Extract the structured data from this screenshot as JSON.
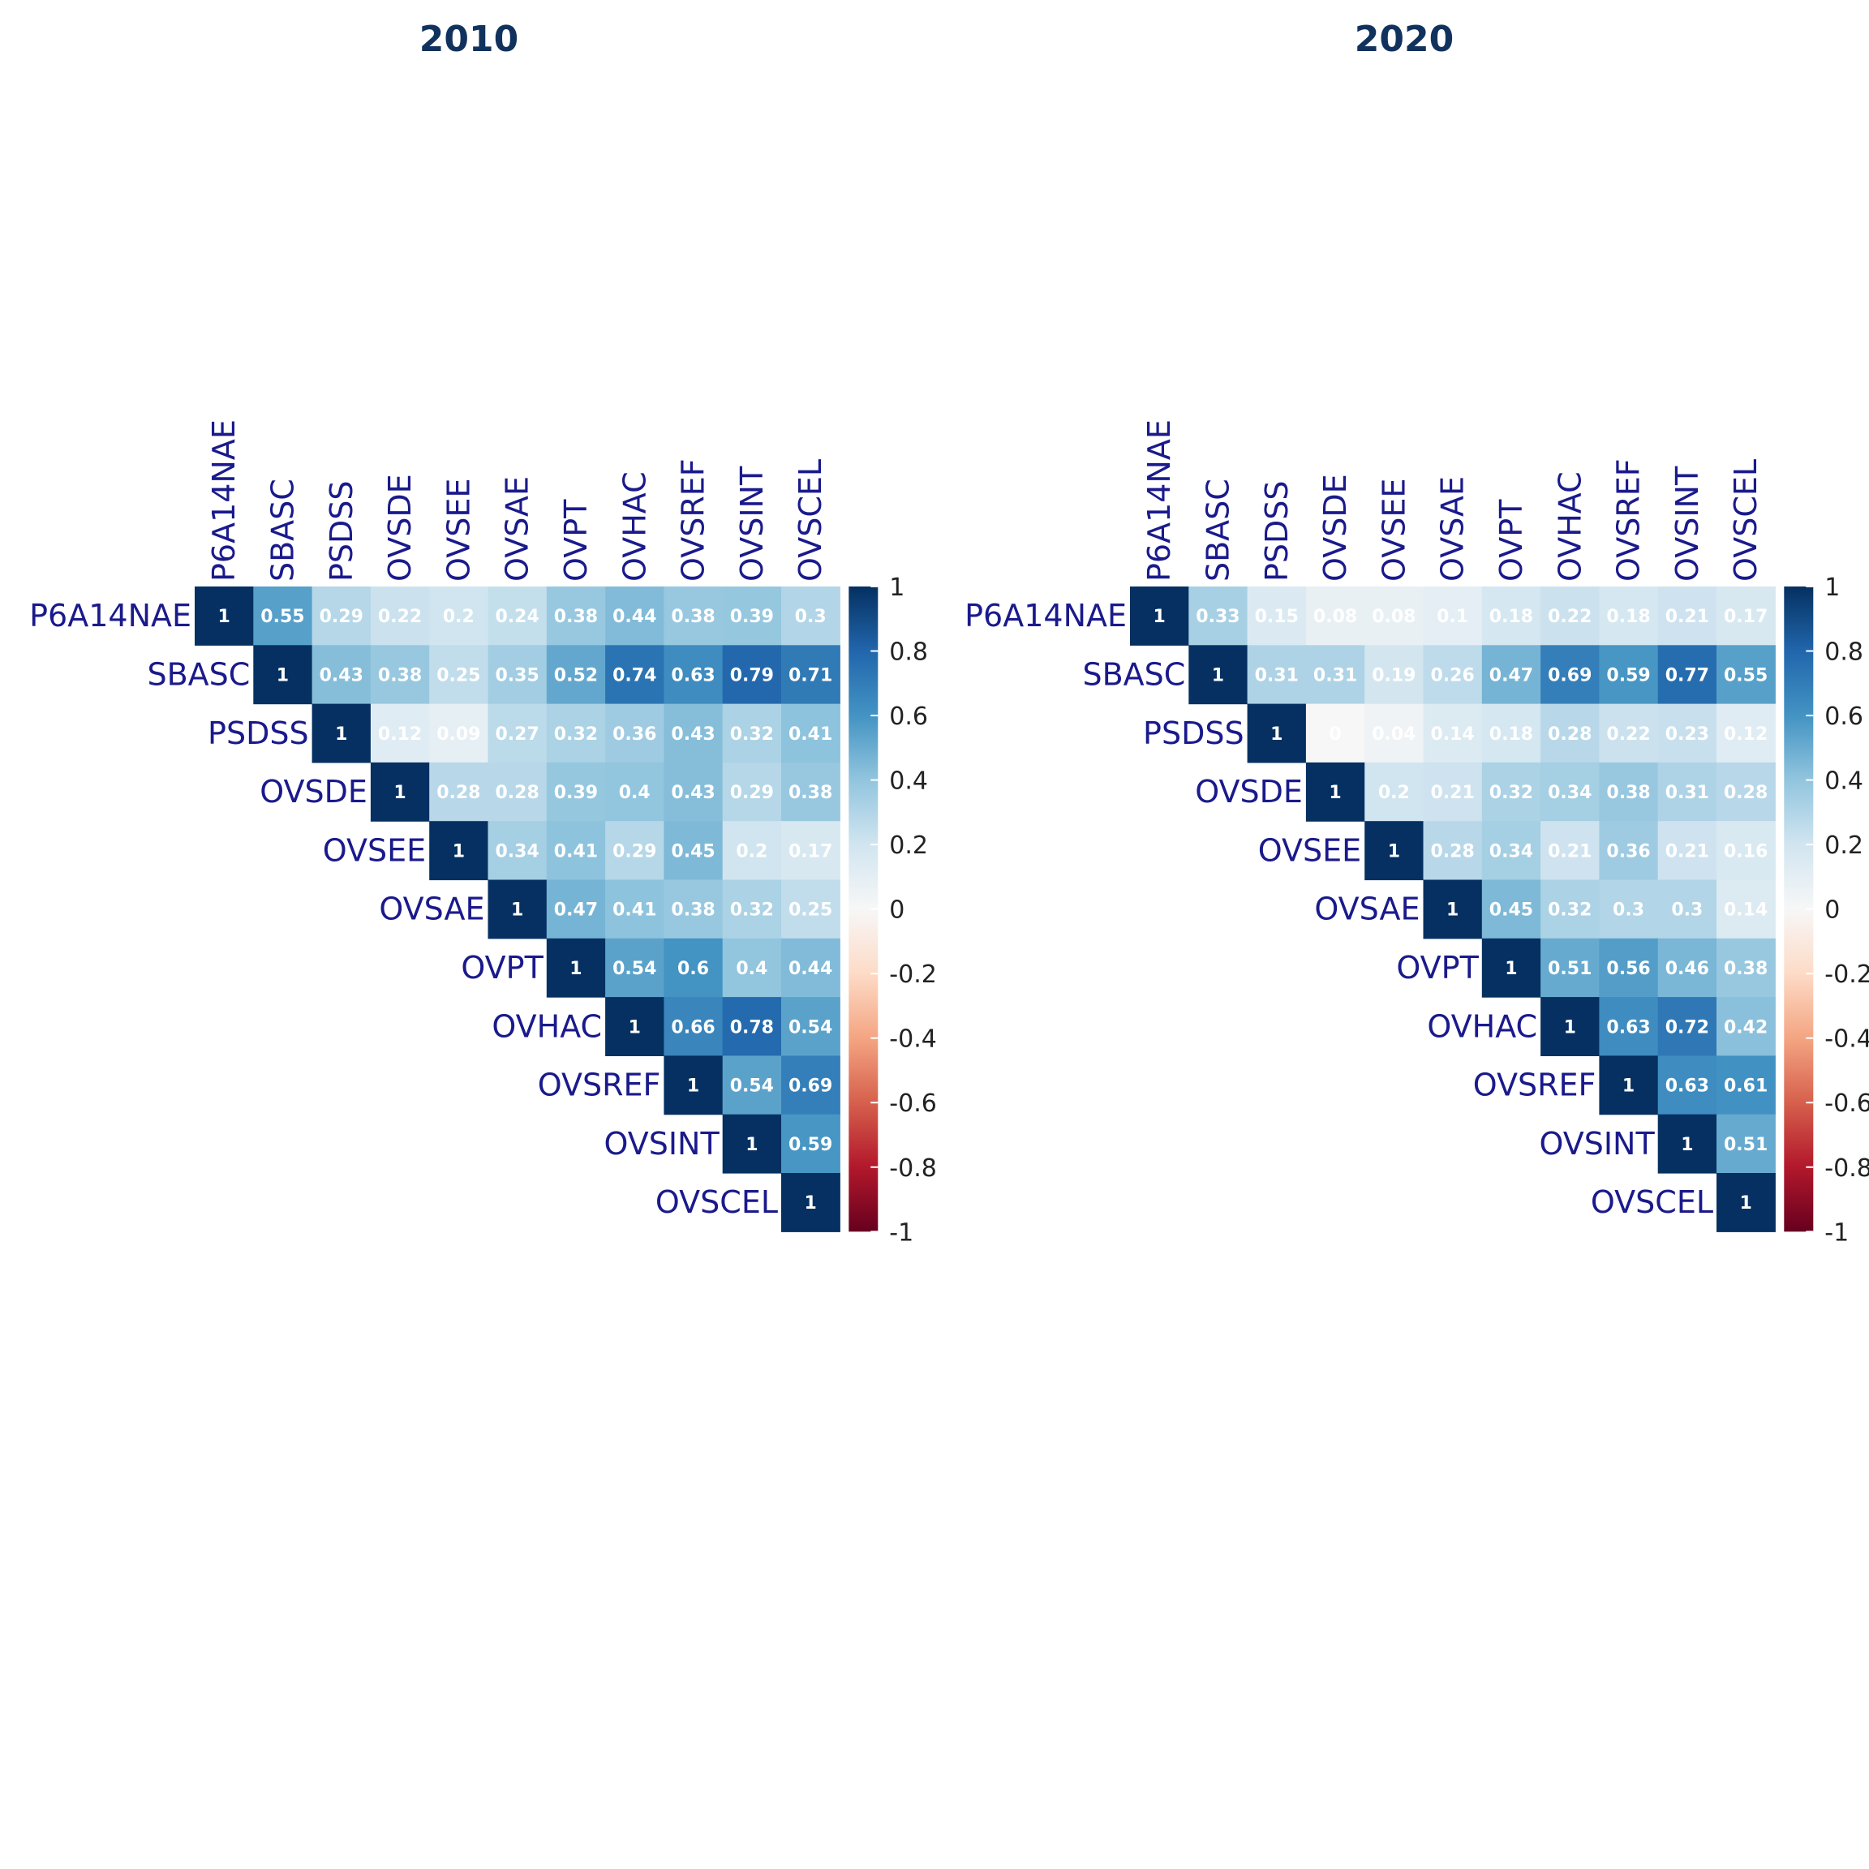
{
  "chart_data": [
    {
      "type": "heatmap",
      "title": "2010",
      "layout": "upper-triangle",
      "variables": [
        "P6A14NAE",
        "SBASC",
        "PSDSS",
        "OVSDE",
        "OVSEE",
        "OVSAE",
        "OVPT",
        "OVHAC",
        "OVSREF",
        "OVSINT",
        "OVSCEL"
      ],
      "matrix": [
        [
          1,
          0.55,
          0.29,
          0.22,
          0.2,
          0.24,
          0.38,
          0.44,
          0.38,
          0.39,
          0.3
        ],
        [
          null,
          1,
          0.43,
          0.38,
          0.25,
          0.35,
          0.52,
          0.74,
          0.63,
          0.79,
          0.71
        ],
        [
          null,
          null,
          1,
          0.12,
          0.09,
          0.27,
          0.32,
          0.36,
          0.43,
          0.32,
          0.41
        ],
        [
          null,
          null,
          null,
          1,
          0.28,
          0.28,
          0.39,
          0.4,
          0.43,
          0.29,
          0.38
        ],
        [
          null,
          null,
          null,
          null,
          1,
          0.34,
          0.41,
          0.29,
          0.45,
          0.2,
          0.17
        ],
        [
          null,
          null,
          null,
          null,
          null,
          1,
          0.47,
          0.41,
          0.38,
          0.32,
          0.25
        ],
        [
          null,
          null,
          null,
          null,
          null,
          null,
          1,
          0.54,
          0.6,
          0.4,
          0.44
        ],
        [
          null,
          null,
          null,
          null,
          null,
          null,
          null,
          1,
          0.66,
          0.78,
          0.54
        ],
        [
          null,
          null,
          null,
          null,
          null,
          null,
          null,
          null,
          1,
          0.54,
          0.69
        ],
        [
          null,
          null,
          null,
          null,
          null,
          null,
          null,
          null,
          null,
          1,
          0.59
        ],
        [
          null,
          null,
          null,
          null,
          null,
          null,
          null,
          null,
          null,
          null,
          1
        ]
      ],
      "labels": [
        [
          "1",
          "0.55",
          "0.29",
          "0.22",
          "0.2",
          "0.24",
          "0.38",
          "0.44",
          "0.38",
          "0.39",
          "0.3"
        ],
        [
          null,
          "1",
          "0.43",
          "0.38",
          "0.25",
          "0.35",
          "0.52",
          "0.74",
          "0.63",
          "0.79",
          "0.71"
        ],
        [
          null,
          null,
          "1",
          "0.12",
          "0.09",
          "0.27",
          "0.32",
          "0.36",
          "0.43",
          "0.32",
          "0.41"
        ],
        [
          null,
          null,
          null,
          "1",
          "0.28",
          "0.28",
          "0.39",
          "0.4",
          "0.43",
          "0.29",
          "0.38"
        ],
        [
          null,
          null,
          null,
          null,
          "1",
          "0.34",
          "0.41",
          "0.29",
          "0.45",
          "0.2",
          "0.17"
        ],
        [
          null,
          null,
          null,
          null,
          null,
          "1",
          "0.47",
          "0.41",
          "0.38",
          "0.32",
          "0.25"
        ],
        [
          null,
          null,
          null,
          null,
          null,
          null,
          "1",
          "0.54",
          "0.6",
          "0.4",
          "0.44"
        ],
        [
          null,
          null,
          null,
          null,
          null,
          null,
          null,
          "1",
          "0.66",
          "0.78",
          "0.54"
        ],
        [
          null,
          null,
          null,
          null,
          null,
          null,
          null,
          null,
          "1",
          "0.54",
          "0.69"
        ],
        [
          null,
          null,
          null,
          null,
          null,
          null,
          null,
          null,
          null,
          "1",
          "0.59"
        ],
        [
          null,
          null,
          null,
          null,
          null,
          null,
          null,
          null,
          null,
          null,
          "1"
        ]
      ],
      "colorbar": {
        "range": [
          -1,
          1
        ],
        "ticks": [
          "1",
          "0.8",
          "0.6",
          "0.4",
          "0.2",
          "0",
          "-0.2",
          "-0.4",
          "-0.6",
          "-0.8",
          "-1"
        ],
        "colormap": [
          "#67001f",
          "#b2182b",
          "#d6604d",
          "#f4a582",
          "#fddbc7",
          "#f7f7f7",
          "#d1e5f0",
          "#92c5de",
          "#4393c3",
          "#2166ac",
          "#053061"
        ]
      }
    },
    {
      "type": "heatmap",
      "title": "2020",
      "layout": "upper-triangle",
      "variables": [
        "P6A14NAE",
        "SBASC",
        "PSDSS",
        "OVSDE",
        "OVSEE",
        "OVSAE",
        "OVPT",
        "OVHAC",
        "OVSREF",
        "OVSINT",
        "OVSCEL"
      ],
      "matrix": [
        [
          1,
          0.33,
          0.15,
          0.08,
          0.08,
          0.1,
          0.18,
          0.22,
          0.18,
          0.21,
          0.17
        ],
        [
          null,
          1,
          0.31,
          0.31,
          0.19,
          0.26,
          0.47,
          0.69,
          0.59,
          0.77,
          0.55
        ],
        [
          null,
          null,
          1,
          0,
          0.04,
          0.14,
          0.18,
          0.28,
          0.22,
          0.23,
          0.12
        ],
        [
          null,
          null,
          null,
          1,
          0.2,
          0.21,
          0.32,
          0.34,
          0.38,
          0.31,
          0.28
        ],
        [
          null,
          null,
          null,
          null,
          1,
          0.28,
          0.34,
          0.21,
          0.36,
          0.21,
          0.16
        ],
        [
          null,
          null,
          null,
          null,
          null,
          1,
          0.45,
          0.32,
          0.3,
          0.3,
          0.14
        ],
        [
          null,
          null,
          null,
          null,
          null,
          null,
          1,
          0.51,
          0.56,
          0.46,
          0.38
        ],
        [
          null,
          null,
          null,
          null,
          null,
          null,
          null,
          1,
          0.63,
          0.72,
          0.42
        ],
        [
          null,
          null,
          null,
          null,
          null,
          null,
          null,
          null,
          1,
          0.63,
          0.61
        ],
        [
          null,
          null,
          null,
          null,
          null,
          null,
          null,
          null,
          null,
          1,
          0.51
        ],
        [
          null,
          null,
          null,
          null,
          null,
          null,
          null,
          null,
          null,
          null,
          1
        ]
      ],
      "labels": [
        [
          "1",
          "0.33",
          "0.15",
          "0.08",
          "0.08",
          "0.1",
          "0.18",
          "0.22",
          "0.18",
          "0.21",
          "0.17"
        ],
        [
          null,
          "1",
          "0.31",
          "0.31",
          "0.19",
          "0.26",
          "0.47",
          "0.69",
          "0.59",
          "0.77",
          "0.55"
        ],
        [
          null,
          null,
          "1",
          "0",
          "0.04",
          "0.14",
          "0.18",
          "0.28",
          "0.22",
          "0.23",
          "0.12"
        ],
        [
          null,
          null,
          null,
          "1",
          "0.2",
          "0.21",
          "0.32",
          "0.34",
          "0.38",
          "0.31",
          "0.28"
        ],
        [
          null,
          null,
          null,
          null,
          "1",
          "0.28",
          "0.34",
          "0.21",
          "0.36",
          "0.21",
          "0.16"
        ],
        [
          null,
          null,
          null,
          null,
          null,
          "1",
          "0.45",
          "0.32",
          "0.3",
          "0.3",
          "0.14"
        ],
        [
          null,
          null,
          null,
          null,
          null,
          null,
          "1",
          "0.51",
          "0.56",
          "0.46",
          "0.38"
        ],
        [
          null,
          null,
          null,
          null,
          null,
          null,
          null,
          "1",
          "0.63",
          "0.72",
          "0.42"
        ],
        [
          null,
          null,
          null,
          null,
          null,
          null,
          null,
          null,
          "1",
          "0.63",
          "0.61"
        ],
        [
          null,
          null,
          null,
          null,
          null,
          null,
          null,
          null,
          null,
          "1",
          "0.51"
        ],
        [
          null,
          null,
          null,
          null,
          null,
          null,
          null,
          null,
          null,
          null,
          "1"
        ]
      ],
      "colorbar": {
        "range": [
          -1,
          1
        ],
        "ticks": [
          "1",
          "0.8",
          "0.6",
          "0.4",
          "0.2",
          "0",
          "-0.2",
          "-0.4",
          "-0.6",
          "-0.8",
          "-1"
        ],
        "colormap": [
          "#67001f",
          "#b2182b",
          "#d6604d",
          "#f4a582",
          "#fddbc7",
          "#f7f7f7",
          "#d1e5f0",
          "#92c5de",
          "#4393c3",
          "#2166ac",
          "#053061"
        ]
      }
    }
  ]
}
